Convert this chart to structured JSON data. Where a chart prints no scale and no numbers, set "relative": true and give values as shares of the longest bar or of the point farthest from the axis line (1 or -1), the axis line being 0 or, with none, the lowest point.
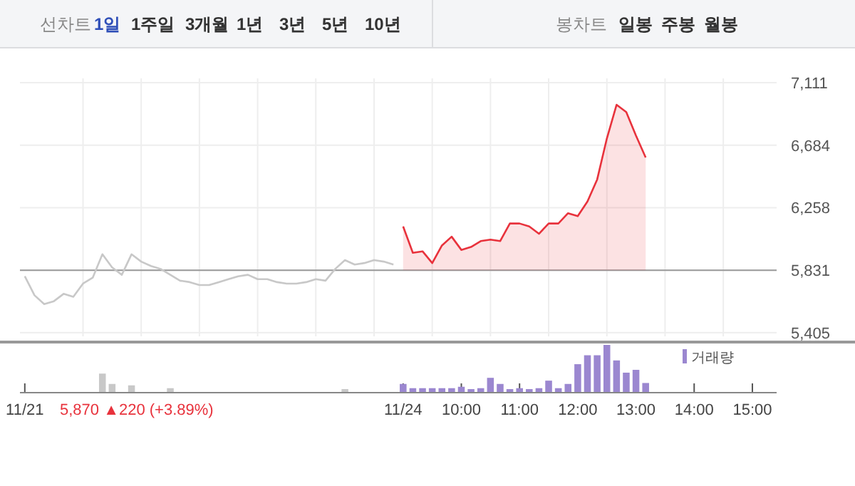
{
  "chart_data": [
    {
      "type": "line",
      "annotations": [
        "선차트",
        "1일",
        "1주일",
        "3개월",
        "1년",
        "3년",
        "5년",
        "10년",
        "봉차트",
        "일봉",
        "주봉",
        "월봉"
      ],
      "categories": [
        null,
        null,
        null,
        null,
        null,
        null,
        null,
        null,
        null,
        null,
        null,
        null,
        null,
        null,
        null,
        null,
        null,
        null,
        null,
        null,
        null,
        null,
        null,
        null,
        null,
        null,
        null,
        null,
        null,
        null,
        null,
        null,
        null,
        null,
        null,
        null,
        null,
        null,
        null,
        null,
        null,
        null,
        null,
        null,
        null,
        null,
        null,
        null,
        null,
        null,
        null,
        null,
        null,
        null,
        null,
        null,
        null,
        null,
        null,
        null,
        null,
        null,
        null,
        null,
        null,
        null,
        null,
        null,
        null,
        null,
        null,
        null,
        null,
        null,
        null,
        null,
        null,
        null
      ],
      "series": [
        {
          "color": "#c8c8c8",
          "values": [
            5790,
            5660,
            5600,
            5620,
            5670,
            5650,
            5740,
            5780,
            5940,
            5850,
            5800,
            5940,
            5890,
            5860,
            5840,
            5800,
            5760,
            5750,
            5730,
            5730,
            5750,
            5770,
            5790,
            5800,
            5770,
            5770,
            5750,
            5740,
            5740,
            5750,
            5770,
            5760,
            5840,
            5900,
            5870,
            5880,
            5900,
            5890,
            5870,
            null,
            null,
            null,
            null,
            null,
            null,
            null,
            null,
            null,
            null,
            null,
            null,
            null,
            null,
            null,
            null,
            null,
            null,
            null,
            null,
            null,
            null,
            null,
            null,
            null,
            null,
            null,
            null,
            null,
            null,
            null,
            null,
            null,
            null,
            null,
            null,
            null,
            null,
            null
          ]
        },
        {
          "type": "area",
          "color": "#e8323c",
          "values": [
            null,
            null,
            null,
            null,
            null,
            null,
            null,
            null,
            null,
            null,
            null,
            null,
            null,
            null,
            null,
            null,
            null,
            null,
            null,
            null,
            null,
            null,
            null,
            null,
            null,
            null,
            null,
            null,
            null,
            null,
            null,
            null,
            null,
            null,
            null,
            null,
            null,
            null,
            null,
            6130,
            5950,
            5960,
            5880,
            6000,
            6060,
            5970,
            5990,
            6030,
            6040,
            6030,
            6150,
            6150,
            6130,
            6080,
            6150,
            6150,
            6220,
            6200,
            6300,
            6450,
            6730,
            6960,
            6910,
            6750,
            6600,
            null,
            null,
            null,
            null,
            null,
            null,
            null,
            null,
            null,
            null,
            null,
            null,
            null
          ]
        }
      ],
      "ylim": [
        5380,
        7140
      ],
      "yticks": [
        {
          "value": 7111,
          "label": "7,111"
        },
        {
          "value": 6684,
          "label": "6,684"
        },
        {
          "value": 6258,
          "label": "6,258"
        },
        {
          "value": 5831,
          "label": "5,831"
        },
        {
          "value": 5405,
          "label": "5,405"
        }
      ],
      "ref_lines": [
        {
          "axis": "y",
          "value": 5831,
          "color": "#999999"
        }
      ],
      "grid": true,
      "tick_labels": "y"
    },
    {
      "type": "bar",
      "relative": true,
      "legend": "top right",
      "tick_labels": "x",
      "annotations": [
        "5,870 ▲220 (+3.89%)"
      ],
      "categories": [
        "11/21",
        null,
        null,
        null,
        null,
        null,
        null,
        null,
        null,
        null,
        null,
        null,
        null,
        null,
        null,
        null,
        null,
        null,
        null,
        null,
        null,
        null,
        null,
        null,
        null,
        null,
        null,
        null,
        null,
        null,
        null,
        null,
        null,
        null,
        null,
        null,
        null,
        null,
        null,
        "11/24",
        null,
        null,
        null,
        null,
        null,
        "10:00",
        null,
        null,
        null,
        null,
        null,
        "11:00",
        null,
        null,
        null,
        null,
        null,
        "12:00",
        null,
        null,
        null,
        null,
        null,
        "13:00",
        null,
        null,
        null,
        null,
        null,
        "14:00",
        null,
        null,
        null,
        null,
        null,
        "15:00",
        null,
        null
      ],
      "series": [
        {
          "color": "#c8c8c8",
          "values": [
            null,
            null,
            null,
            null,
            null,
            null,
            null,
            null,
            0.39,
            0.17,
            null,
            0.14,
            null,
            null,
            null,
            0.08,
            null,
            null,
            null,
            null,
            null,
            null,
            null,
            null,
            null,
            null,
            null,
            null,
            null,
            null,
            null,
            null,
            null,
            0.06,
            null,
            null,
            null,
            null,
            null,
            null,
            null,
            null,
            null,
            null,
            null,
            null,
            null,
            null,
            null,
            null,
            null,
            null,
            null,
            null,
            null,
            null,
            null,
            null,
            null,
            null,
            null,
            null,
            null,
            null,
            null,
            null,
            null,
            null,
            null,
            null,
            null,
            null,
            null,
            null,
            null,
            null,
            null,
            null
          ]
        },
        {
          "name": "거래량",
          "color": "#9b87d0",
          "values": [
            null,
            null,
            null,
            null,
            null,
            null,
            null,
            null,
            null,
            null,
            null,
            null,
            null,
            null,
            null,
            null,
            null,
            null,
            null,
            null,
            null,
            null,
            null,
            null,
            null,
            null,
            null,
            null,
            null,
            null,
            null,
            null,
            null,
            null,
            null,
            null,
            null,
            null,
            null,
            0.17,
            0.08,
            0.08,
            0.08,
            0.08,
            0.08,
            0.11,
            0.06,
            0.08,
            0.3,
            0.17,
            0.06,
            0.08,
            0.06,
            0.08,
            0.24,
            0.08,
            0.17,
            0.59,
            0.78,
            0.78,
            1,
            0.67,
            0.41,
            0.47,
            0.19,
            null,
            null,
            null,
            null,
            null,
            null,
            null,
            null,
            null,
            null,
            null,
            null,
            null
          ]
        }
      ]
    }
  ]
}
